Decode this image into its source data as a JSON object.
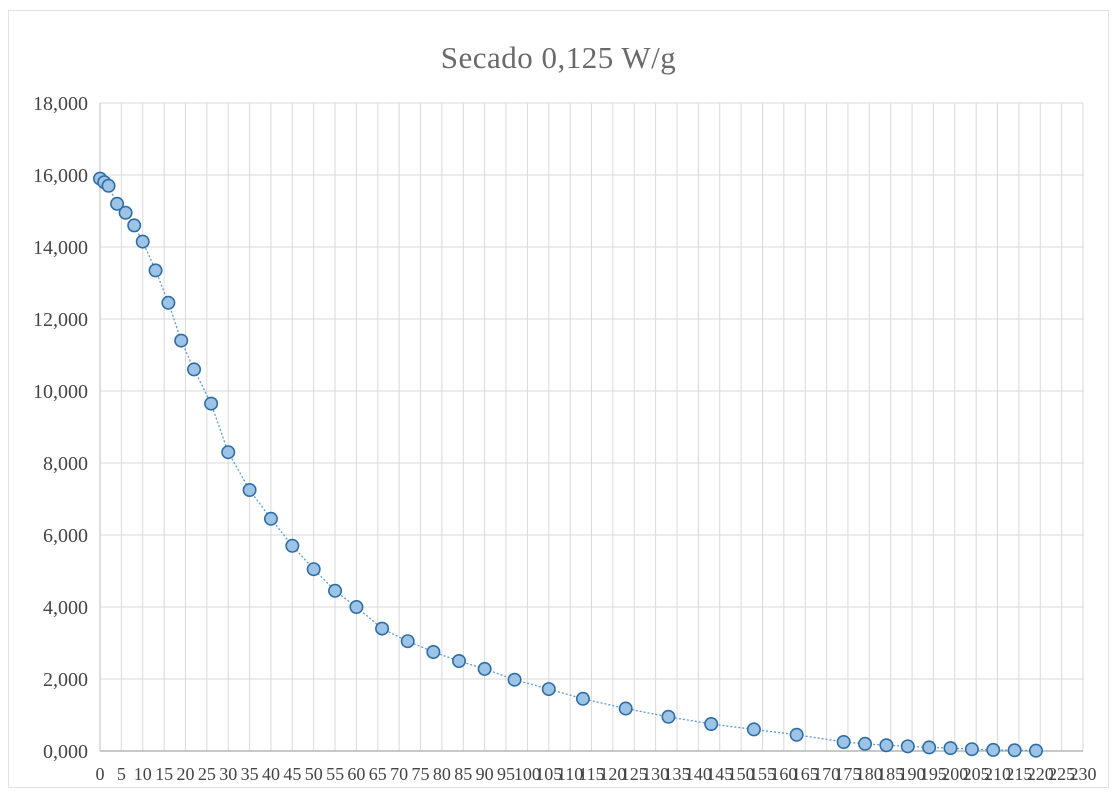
{
  "chart_data": {
    "type": "scatter",
    "title": "Secado 0,125 W/g",
    "xlabel": "",
    "ylabel": "",
    "ylim": [
      0,
      18
    ],
    "xlim": [
      0,
      230
    ],
    "grid": true,
    "legend": "none",
    "marker_color": "#9dc3e6",
    "marker_edge_color": "#2e6da4",
    "line_color": "#5b9bd5",
    "y_tick_labels": [
      "0,000",
      "2,000",
      "4,000",
      "6,000",
      "8,000",
      "10,000",
      "12,000",
      "14,000",
      "16,000",
      "18,000"
    ],
    "y_tick_values": [
      0,
      2,
      4,
      6,
      8,
      10,
      12,
      14,
      16,
      18
    ],
    "x_tick_labels": [
      "0",
      "5",
      "10",
      "15",
      "20",
      "25",
      "30",
      "35",
      "40",
      "45",
      "50",
      "55",
      "60",
      "65",
      "70",
      "75",
      "80",
      "85",
      "90",
      "95",
      "100",
      "105",
      "110",
      "115",
      "120",
      "125",
      "130",
      "135",
      "140",
      "145",
      "150",
      "155",
      "160",
      "165",
      "170",
      "175",
      "180",
      "185",
      "190",
      "195",
      "200",
      "205",
      "210",
      "215",
      "220",
      "225",
      "230"
    ],
    "x_tick_values": [
      0,
      5,
      10,
      15,
      20,
      25,
      30,
      35,
      40,
      45,
      50,
      55,
      60,
      65,
      70,
      75,
      80,
      85,
      90,
      95,
      100,
      105,
      110,
      115,
      120,
      125,
      130,
      135,
      140,
      145,
      150,
      155,
      160,
      165,
      170,
      175,
      180,
      185,
      190,
      195,
      200,
      205,
      210,
      215,
      220,
      225,
      230
    ],
    "series": [
      {
        "x": [
          0,
          1,
          2,
          4,
          6,
          8,
          10,
          13,
          16,
          19,
          22,
          26,
          30,
          35,
          40,
          45,
          50,
          55,
          60,
          66,
          72,
          78,
          84,
          90,
          97,
          105,
          113,
          123,
          133,
          143,
          153,
          163,
          174,
          179,
          184,
          189,
          194,
          199,
          204,
          209,
          214,
          219
        ],
        "y": [
          15.9,
          15.8,
          15.7,
          15.2,
          14.95,
          14.6,
          14.15,
          13.35,
          12.45,
          11.4,
          10.6,
          9.65,
          8.3,
          7.25,
          6.45,
          5.7,
          5.05,
          4.45,
          4.0,
          3.4,
          3.05,
          2.75,
          2.5,
          2.28,
          1.98,
          1.72,
          1.45,
          1.18,
          0.95,
          0.75,
          0.6,
          0.45,
          0.25,
          0.2,
          0.16,
          0.13,
          0.1,
          0.08,
          0.05,
          0.03,
          0.02,
          0.01
        ]
      }
    ]
  }
}
